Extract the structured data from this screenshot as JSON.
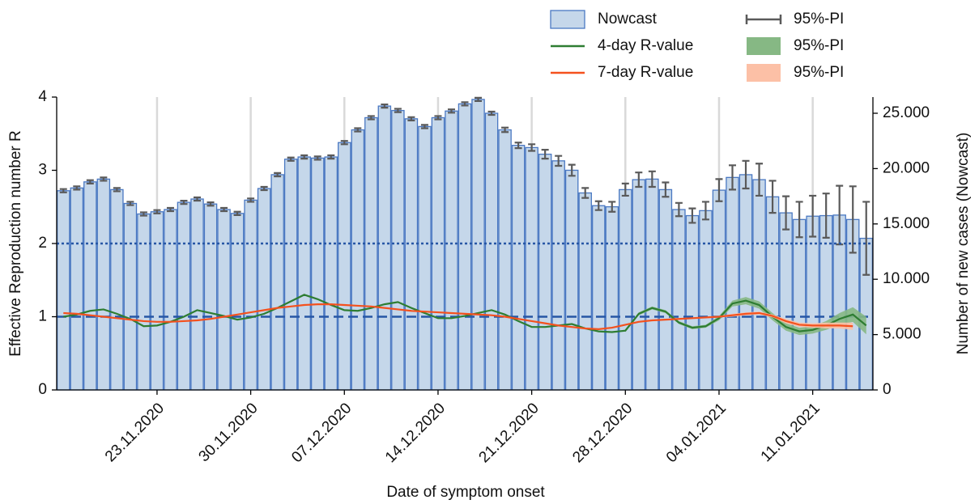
{
  "chart_data": {
    "type": "bar",
    "x_label": "Date of symptom onset",
    "y_label": "Effective Reproduction number R",
    "y2_label": "Number of new cases (Nowcast)",
    "categories": [
      null,
      null,
      null,
      null,
      null,
      null,
      null,
      "23.11.2020",
      null,
      null,
      null,
      null,
      null,
      null,
      "30.11.2020",
      null,
      null,
      null,
      null,
      null,
      null,
      "07.12.2020",
      null,
      null,
      null,
      null,
      null,
      null,
      "14.12.2020",
      null,
      null,
      null,
      null,
      null,
      null,
      "21.12.2020",
      null,
      null,
      null,
      null,
      null,
      null,
      "28.12.2020",
      null,
      null,
      null,
      null,
      null,
      null,
      "04.01.2021",
      null,
      null,
      null,
      null,
      null,
      null,
      "11.01.2021",
      null,
      null,
      null,
      null
    ],
    "ylim": [
      0,
      4
    ],
    "yticks": [
      0,
      1,
      2,
      3,
      4
    ],
    "y2lim": [
      0,
      26462
    ],
    "y2ticks": [
      0,
      {
        "value": 5000,
        "label": "5.000"
      },
      {
        "value": 10000,
        "label": "10.000"
      },
      {
        "value": 15000,
        "label": "15.000"
      },
      {
        "value": 20000,
        "label": "20.000"
      },
      {
        "value": 25000,
        "label": "25.000"
      }
    ],
    "x_grid": true,
    "reference_lines": [
      {
        "value": 2,
        "style": "dotted",
        "color": "#2757a5"
      },
      {
        "value": 1,
        "style": "dashed",
        "color": "#2757a5"
      }
    ],
    "series": [
      {
        "name": "Nowcast",
        "type": "bar",
        "axis": "y2",
        "color": "#c5d7ea",
        "edgecolor": "#4a78c2",
        "values": [
          18000,
          18250,
          18800,
          19050,
          18100,
          16850,
          15900,
          16100,
          16300,
          16950,
          17250,
          16800,
          16300,
          15950,
          17150,
          18200,
          19450,
          20850,
          21050,
          20950,
          21050,
          22350,
          23500,
          24600,
          25650,
          25250,
          24500,
          23800,
          24600,
          25200,
          25850,
          26250,
          25000,
          23500,
          22100,
          21900,
          21300,
          20700,
          19850,
          17800,
          16650,
          16550,
          18100,
          19000,
          19050,
          18100,
          16300,
          15750,
          16200,
          18050,
          19200,
          19450,
          19000,
          17450,
          16000,
          15400,
          15700,
          15750,
          15800,
          15400,
          13700
        ],
        "errors": [
          150,
          150,
          150,
          150,
          150,
          150,
          150,
          150,
          150,
          150,
          150,
          150,
          150,
          150,
          150,
          150,
          150,
          150,
          150,
          150,
          150,
          150,
          150,
          150,
          150,
          150,
          150,
          150,
          150,
          150,
          150,
          150,
          150,
          200,
          250,
          300,
          400,
          450,
          500,
          450,
          400,
          450,
          550,
          650,
          700,
          650,
          600,
          650,
          800,
          1000,
          1100,
          1250,
          1450,
          1450,
          1500,
          1600,
          1850,
          2000,
          2650,
          3000,
          3300
        ],
        "error_name": "95%-PI",
        "error_color": "#5a5a5a"
      },
      {
        "name": "4-day R-value",
        "type": "line",
        "color": "#2e7d32",
        "values": [
          1.0,
          1.03,
          1.08,
          1.1,
          1.04,
          0.97,
          0.87,
          0.88,
          0.93,
          1.0,
          1.09,
          1.05,
          1.01,
          0.96,
          0.99,
          1.04,
          1.12,
          1.21,
          1.3,
          1.24,
          1.16,
          1.09,
          1.08,
          1.12,
          1.17,
          1.2,
          1.12,
          1.05,
          0.98,
          0.98,
          1.01,
          1.05,
          1.09,
          1.03,
          0.94,
          0.86,
          0.86,
          0.88,
          0.9,
          0.84,
          0.8,
          0.79,
          0.81,
          1.04,
          1.12,
          1.07,
          0.92,
          0.85,
          0.87,
          0.98,
          1.18,
          1.22,
          1.16,
          1.0,
          0.86,
          0.8,
          0.82,
          0.88,
          0.97,
          1.03,
          0.88
        ],
        "lower": [
          null,
          null,
          null,
          null,
          null,
          null,
          null,
          null,
          null,
          null,
          null,
          null,
          null,
          null,
          null,
          null,
          null,
          null,
          null,
          null,
          null,
          null,
          null,
          null,
          null,
          null,
          null,
          null,
          null,
          null,
          null,
          null,
          null,
          null,
          null,
          null,
          null,
          null,
          null,
          null,
          null,
          null,
          0.79,
          1.02,
          1.1,
          1.05,
          0.9,
          0.83,
          0.85,
          0.95,
          1.14,
          1.17,
          1.11,
          0.95,
          0.81,
          0.75,
          0.77,
          0.82,
          0.89,
          0.93,
          0.76
        ],
        "upper": [
          null,
          null,
          null,
          null,
          null,
          null,
          null,
          null,
          null,
          null,
          null,
          null,
          null,
          null,
          null,
          null,
          null,
          null,
          null,
          null,
          null,
          null,
          null,
          null,
          null,
          null,
          null,
          null,
          null,
          null,
          null,
          null,
          null,
          null,
          null,
          null,
          null,
          null,
          null,
          null,
          null,
          null,
          0.83,
          1.06,
          1.14,
          1.09,
          0.94,
          0.87,
          0.89,
          1.01,
          1.22,
          1.27,
          1.21,
          1.05,
          0.91,
          0.85,
          0.87,
          0.94,
          1.05,
          1.13,
          1.0
        ],
        "band_name": "95%-PI",
        "band_color": "#86b884"
      },
      {
        "name": "7-day R-value",
        "type": "line",
        "color": "#f4511e",
        "values": [
          1.05,
          1.04,
          1.02,
          1.0,
          0.98,
          0.96,
          0.94,
          0.93,
          0.93,
          0.94,
          0.95,
          0.97,
          1.0,
          1.03,
          1.06,
          1.09,
          1.12,
          1.14,
          1.16,
          1.17,
          1.17,
          1.16,
          1.15,
          1.14,
          1.12,
          1.1,
          1.08,
          1.07,
          1.06,
          1.05,
          1.04,
          1.03,
          1.02,
          1.0,
          0.97,
          0.94,
          0.91,
          0.88,
          0.86,
          0.84,
          0.83,
          0.85,
          0.89,
          0.93,
          0.95,
          0.96,
          0.97,
          0.98,
          0.99,
          1.0,
          1.02,
          1.04,
          1.05,
          1.01,
          0.94,
          0.89,
          0.88,
          0.88,
          0.88,
          0.87,
          null
        ],
        "lower": [
          null,
          null,
          null,
          null,
          null,
          null,
          null,
          null,
          null,
          null,
          null,
          null,
          null,
          null,
          null,
          null,
          null,
          null,
          null,
          null,
          null,
          null,
          null,
          null,
          null,
          null,
          null,
          null,
          null,
          null,
          null,
          null,
          null,
          null,
          null,
          null,
          null,
          null,
          null,
          null,
          null,
          null,
          null,
          null,
          null,
          null,
          0.96,
          0.97,
          0.98,
          0.99,
          1.0,
          1.02,
          1.03,
          0.99,
          0.91,
          0.86,
          0.85,
          0.84,
          0.84,
          0.82,
          null
        ],
        "upper": [
          null,
          null,
          null,
          null,
          null,
          null,
          null,
          null,
          null,
          null,
          null,
          null,
          null,
          null,
          null,
          null,
          null,
          null,
          null,
          null,
          null,
          null,
          null,
          null,
          null,
          null,
          null,
          null,
          null,
          null,
          null,
          null,
          null,
          null,
          null,
          null,
          null,
          null,
          null,
          null,
          null,
          null,
          null,
          null,
          null,
          null,
          0.98,
          0.99,
          1.0,
          1.01,
          1.04,
          1.06,
          1.07,
          1.03,
          0.97,
          0.92,
          0.91,
          0.92,
          0.92,
          0.92,
          null
        ],
        "band_name": "95%-PI",
        "band_color": "#fcc0a6"
      }
    ]
  }
}
